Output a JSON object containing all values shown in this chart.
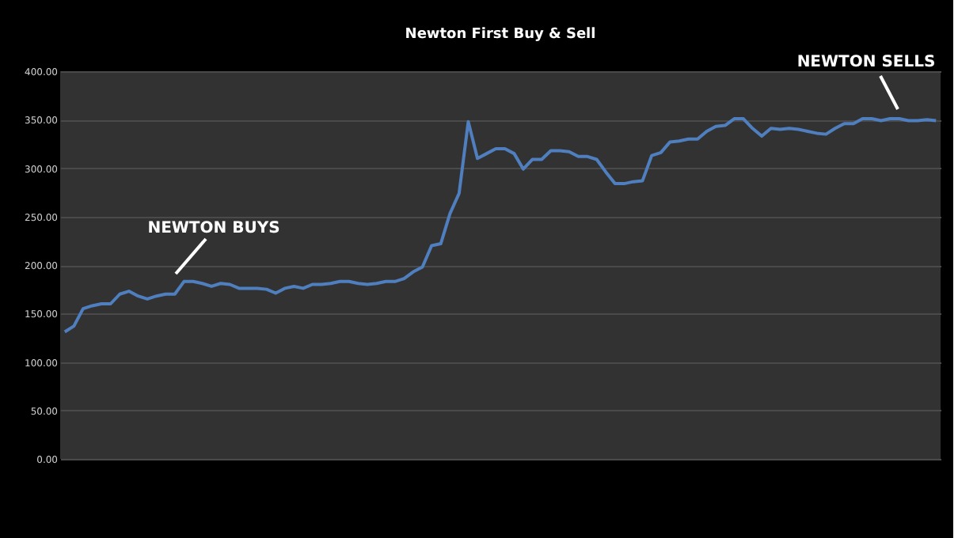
{
  "chart_data": {
    "type": "line",
    "title": "Newton First Buy & Sell",
    "categories": [
      null,
      null,
      null,
      null,
      null,
      null,
      null,
      null,
      null,
      null,
      null,
      null,
      null,
      null,
      null,
      null,
      null,
      null,
      null,
      null,
      null,
      null,
      null,
      null,
      null,
      null,
      null,
      null,
      null,
      null,
      null,
      null,
      null,
      null,
      null,
      null,
      null,
      null,
      null,
      null,
      null,
      null,
      null,
      null,
      null,
      null,
      null,
      null,
      null,
      null,
      null,
      null,
      null,
      null,
      null,
      null,
      null,
      null,
      null,
      null,
      null,
      null,
      null,
      null,
      null,
      null,
      null,
      null,
      null,
      null,
      null,
      null,
      null,
      null,
      null,
      null,
      null,
      null,
      null,
      null,
      null,
      null,
      null,
      null,
      null,
      null,
      null,
      null,
      null,
      null,
      null,
      null,
      null,
      null,
      null,
      null
    ],
    "series": [
      {
        "color": "#4f7fbf",
        "values": [
          131,
          137,
          155,
          158,
          160,
          160,
          170,
          173,
          168,
          165,
          168,
          170,
          170,
          183,
          183,
          181,
          178,
          181,
          180,
          176,
          176,
          176,
          175,
          171,
          176,
          178,
          176,
          180,
          180,
          181,
          183,
          183,
          181,
          180,
          181,
          183,
          183,
          186,
          193,
          198,
          220,
          222,
          253,
          274,
          348,
          310,
          315,
          320,
          320,
          315,
          299,
          309,
          309,
          318,
          318,
          317,
          312,
          312,
          309,
          296,
          284,
          284,
          286,
          287,
          313,
          316,
          327,
          328,
          330,
          330,
          338,
          343,
          344,
          351,
          351,
          341,
          333,
          341,
          340,
          341,
          340,
          338,
          336,
          335,
          341,
          346,
          346,
          351,
          351,
          349,
          351,
          351,
          349,
          349,
          350,
          349
        ]
      }
    ],
    "ylim": [
      0,
      400
    ],
    "yticks": [
      {
        "value": 0,
        "label": "0.00"
      },
      {
        "value": 50,
        "label": "50.00"
      },
      {
        "value": 100,
        "label": "100.00"
      },
      {
        "value": 150,
        "label": "150.00"
      },
      {
        "value": 200,
        "label": "200.00"
      },
      {
        "value": 250,
        "label": "250.00"
      },
      {
        "value": 300,
        "label": "300.00"
      },
      {
        "value": 350,
        "label": "350.00"
      },
      {
        "value": 400,
        "label": "400.00"
      }
    ],
    "grid": "y",
    "legend": false,
    "marker": "none",
    "line_style": "solid",
    "tick_labels": "y",
    "annotations": [
      "NEWTON BUYS",
      "NEWTON SELLS"
    ]
  }
}
